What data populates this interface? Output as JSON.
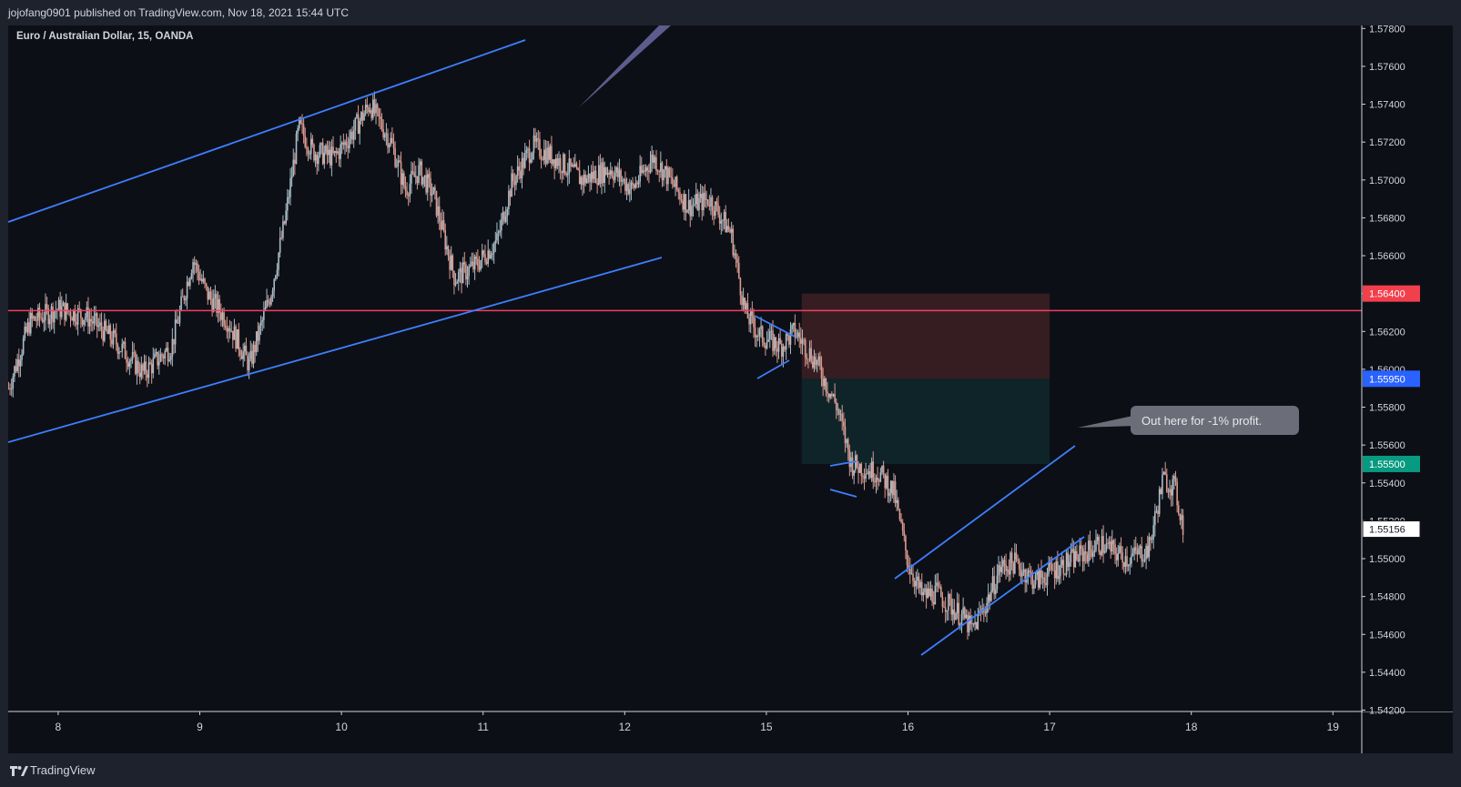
{
  "publish_info": "jojofang0901 published on TradingView.com, Nov 18, 2021 15:44 UTC",
  "symbol_title": "Euro / Australian Dollar, 15, OANDA",
  "footer_brand": "TradingView",
  "colors": {
    "background": "#0d0f16",
    "frame": "#1e222d",
    "up_candle": "#a8bcc6",
    "down_candle": "#d99a8e",
    "trendline": "#3d7fff",
    "horizontal_line": "#f23f62",
    "stop_zone": "#3b1f24",
    "target_zone": "#10262a",
    "callout": "#6b6e78"
  },
  "chart_data": {
    "type": "candlestick",
    "y_axis": {
      "min": 1.542,
      "max": 1.578,
      "ticks": [
        "1.57800",
        "1.57600",
        "1.57400",
        "1.57200",
        "1.57000",
        "1.56800",
        "1.56600",
        "1.56400",
        "1.56200",
        "1.56000",
        "1.55800",
        "1.55600",
        "1.55400",
        "1.55200",
        "1.55000",
        "1.54800",
        "1.54600",
        "1.54400",
        "1.54200"
      ]
    },
    "x_axis": {
      "ticks": [
        "8",
        "9",
        "10",
        "11",
        "12",
        "15",
        "16",
        "17",
        "18",
        "19"
      ]
    },
    "price_path": [
      [
        7.65,
        1.559
      ],
      [
        7.8,
        1.5625
      ],
      [
        8.0,
        1.5632
      ],
      [
        8.2,
        1.5628
      ],
      [
        8.4,
        1.5615
      ],
      [
        8.6,
        1.5598
      ],
      [
        8.8,
        1.5612
      ],
      [
        8.95,
        1.5658
      ],
      [
        9.05,
        1.564
      ],
      [
        9.2,
        1.5625
      ],
      [
        9.35,
        1.5602
      ],
      [
        9.5,
        1.564
      ],
      [
        9.6,
        1.5678
      ],
      [
        9.7,
        1.5728
      ],
      [
        9.8,
        1.5715
      ],
      [
        9.95,
        1.5712
      ],
      [
        10.05,
        1.5722
      ],
      [
        10.2,
        1.574
      ],
      [
        10.35,
        1.572
      ],
      [
        10.45,
        1.5695
      ],
      [
        10.55,
        1.5705
      ],
      [
        10.65,
        1.5692
      ],
      [
        10.8,
        1.5648
      ],
      [
        10.95,
        1.5655
      ],
      [
        11.1,
        1.5668
      ],
      [
        11.2,
        1.5698
      ],
      [
        11.35,
        1.5718
      ],
      [
        11.5,
        1.5712
      ],
      [
        11.7,
        1.57
      ],
      [
        11.9,
        1.5706
      ],
      [
        12.05,
        1.5695
      ],
      [
        12.2,
        1.5712
      ],
      [
        12.3,
        1.5702
      ],
      [
        12.45,
        1.5686
      ],
      [
        12.6,
        1.569
      ],
      [
        12.75,
        1.5672
      ],
      [
        12.85,
        1.563
      ],
      [
        12.95,
        1.5618
      ],
      [
        13.1,
        1.5612
      ],
      [
        13.2,
        1.562
      ],
      [
        13.35,
        1.5604
      ],
      [
        13.5,
        1.558
      ],
      [
        13.6,
        1.555
      ],
      [
        13.8,
        1.5545
      ],
      [
        13.9,
        1.5535
      ],
      [
        14.0,
        1.5498
      ],
      [
        14.1,
        1.548
      ],
      [
        14.2,
        1.5482
      ],
      [
        14.3,
        1.5475
      ],
      [
        14.4,
        1.5468
      ],
      [
        14.45,
        1.5462
      ],
      [
        14.55,
        1.5476
      ],
      [
        14.65,
        1.5495
      ],
      [
        14.75,
        1.5498
      ],
      [
        14.9,
        1.5488
      ],
      [
        15.05,
        1.5495
      ],
      [
        15.25,
        1.5503
      ],
      [
        15.35,
        1.5508
      ],
      [
        15.55,
        1.55
      ],
      [
        15.7,
        1.5505
      ],
      [
        15.8,
        1.5542
      ],
      [
        15.88,
        1.5538
      ],
      [
        15.95,
        1.5515
      ]
    ],
    "horizontal_line_price": 1.5631,
    "price_labels": [
      {
        "price": 1.564,
        "text": "1.56400",
        "style": "stop"
      },
      {
        "price": 1.5595,
        "text": "1.55950",
        "style": "entry"
      },
      {
        "price": 1.555,
        "text": "1.55500",
        "style": "target"
      },
      {
        "price": 1.55156,
        "text": "1.55156",
        "style": "last"
      }
    ],
    "position": {
      "entry": 1.5595,
      "stop": 1.564,
      "target": 1.555
    },
    "annotation": "Out here for -1% profit."
  }
}
